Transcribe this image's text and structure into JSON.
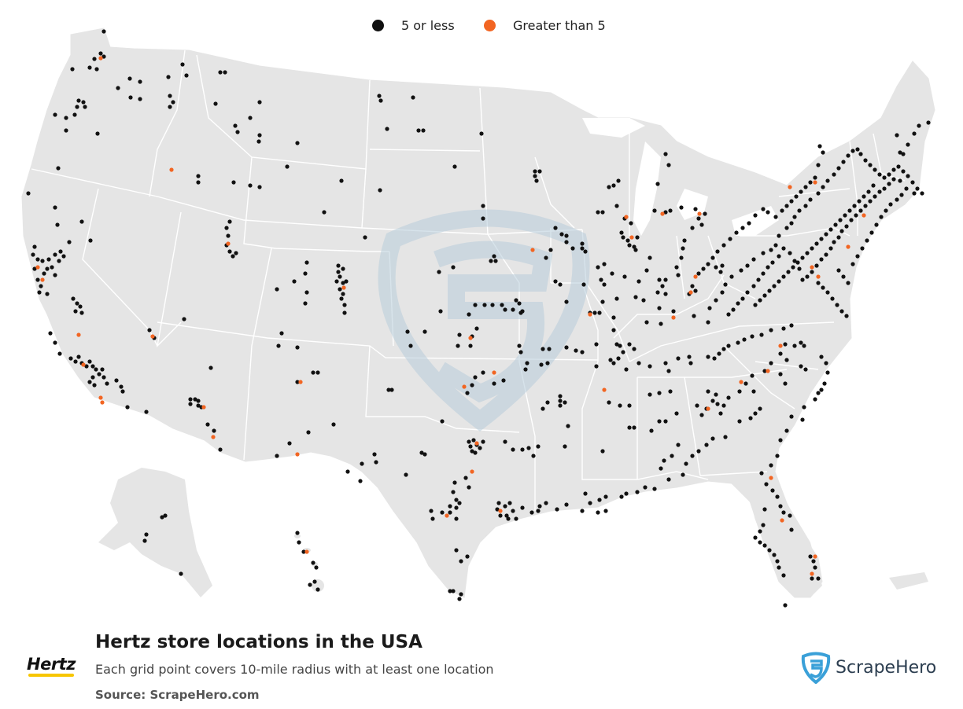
{
  "legend": {
    "small_label": "5 or less",
    "large_label": "Greater than 5",
    "small_color": "#111111",
    "large_color": "#f26522"
  },
  "title": "Hertz store locations in the USA",
  "subtitle": "Each grid point covers 10-mile radius with at least one location",
  "source": "Source: ScrapeHero.com",
  "brand_logo_text": "Hertz",
  "publisher_logo_text": "ScrapeHero",
  "colors": {
    "land": "#e5e5e5",
    "border": "#ffffff",
    "watermark": "#c9d8e3"
  }
}
